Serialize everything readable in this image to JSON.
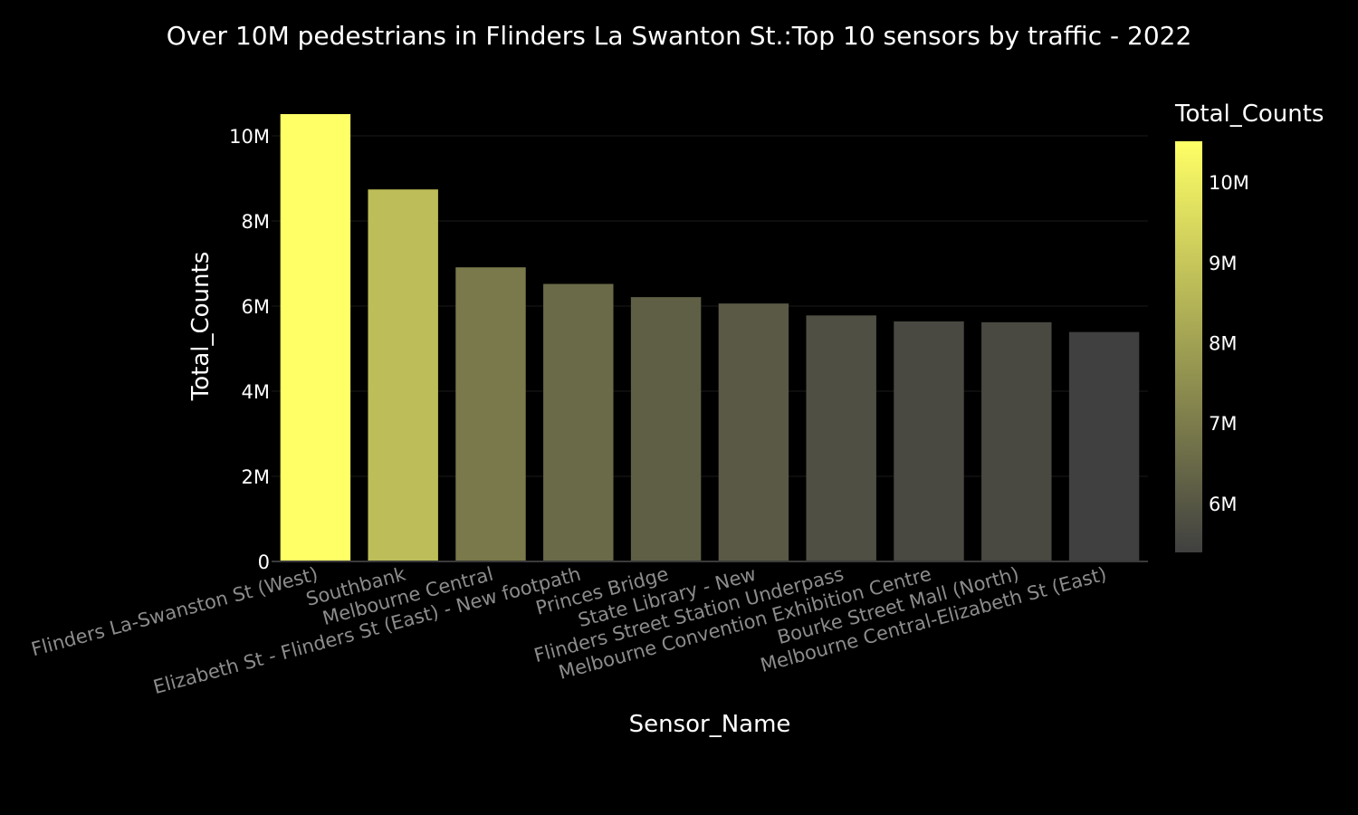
{
  "chart_data": {
    "type": "bar",
    "title": "Over 10M pedestrians in Flinders La Swanton St.:Top 10 sensors by traffic - 2022",
    "xlabel": "Sensor_Name",
    "ylabel": "Total_Counts",
    "categories": [
      "Flinders La-Swanston St (West)",
      "Southbank",
      "Melbourne Central",
      "Elizabeth St - Flinders St (East) - New footpath",
      "Princes Bridge",
      "State Library - New",
      "Flinders Street Station Underpass",
      "Melbourne Convention Exhibition Centre",
      "Bourke Street Mall (North)",
      "Melbourne Central-Elizabeth St (East)"
    ],
    "values": [
      10510000,
      8740000,
      6910000,
      6520000,
      6210000,
      6060000,
      5780000,
      5640000,
      5620000,
      5390000
    ],
    "ylim": [
      0,
      10510000
    ],
    "yticks": [
      {
        "value": 0,
        "label": "0"
      },
      {
        "value": 2000000,
        "label": "2M"
      },
      {
        "value": 4000000,
        "label": "4M"
      },
      {
        "value": 6000000,
        "label": "6M"
      },
      {
        "value": 8000000,
        "label": "8M"
      },
      {
        "value": 10000000,
        "label": "10M"
      }
    ],
    "grid": true,
    "colorbar": {
      "title": "Total_Counts",
      "range": [
        5390000,
        10510000
      ],
      "ticks": [
        {
          "value": 6000000,
          "label": "6M"
        },
        {
          "value": 7000000,
          "label": "7M"
        },
        {
          "value": 8000000,
          "label": "8M"
        },
        {
          "value": 9000000,
          "label": "9M"
        },
        {
          "value": 10000000,
          "label": "10M"
        }
      ],
      "color_low": "#404040",
      "color_high": "#ffff66"
    },
    "background": "#000000"
  }
}
